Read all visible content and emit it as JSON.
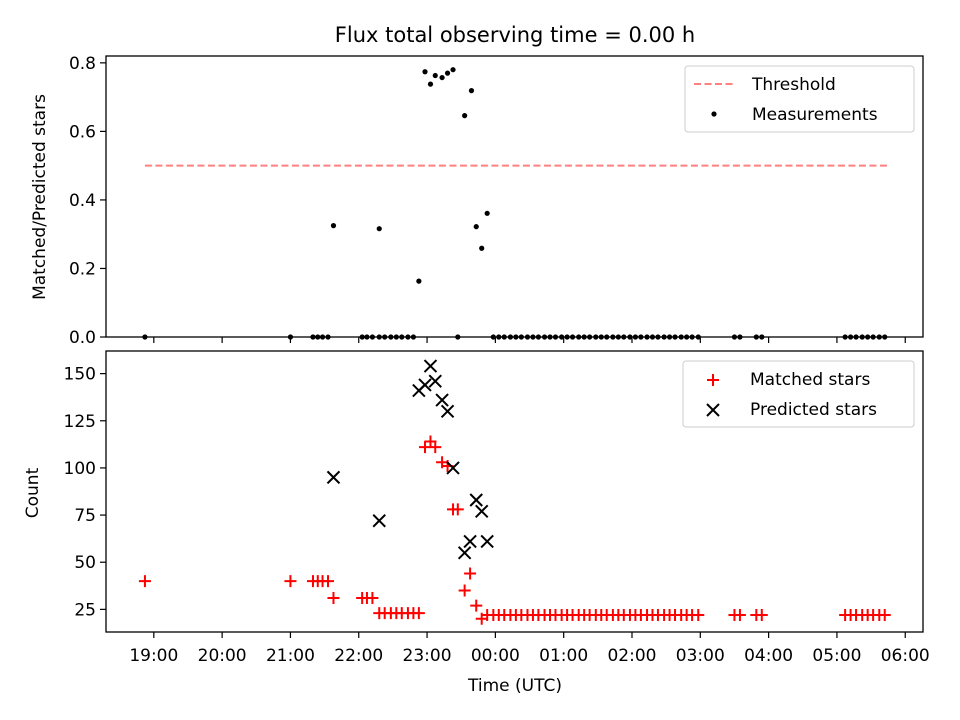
{
  "chart_data": [
    {
      "type": "scatter",
      "title": "Flux total observing time = 0.00 h",
      "ylabel": "Matched/Predicted stars",
      "ylim": [
        0,
        0.82
      ],
      "yticks": [
        0.0,
        0.2,
        0.4,
        0.6,
        0.8
      ],
      "ytick_labels": [
        "0.0",
        "0.2",
        "0.4",
        "0.6",
        "0.8"
      ],
      "legend_position": "top-right",
      "threshold": {
        "name": "Threshold",
        "value": 0.5,
        "x_start": 18.87,
        "x_end": 29.75,
        "color": "#ff8080"
      },
      "series": [
        {
          "name": "Measurements",
          "color": "#000000",
          "x": [
            18.87,
            21.0,
            21.33,
            21.4,
            21.47,
            21.55,
            21.63,
            22.05,
            22.12,
            22.2,
            22.3,
            22.3,
            22.38,
            22.47,
            22.55,
            22.63,
            22.72,
            22.8,
            22.88,
            22.97,
            23.05,
            23.12,
            23.22,
            23.3,
            23.38,
            23.45,
            23.55,
            23.65,
            23.72,
            23.8,
            23.88,
            23.97,
            24.05,
            24.13,
            24.22,
            24.3,
            24.38,
            24.47,
            24.55,
            24.63,
            24.72,
            24.8,
            24.88,
            24.97,
            25.05,
            25.13,
            25.22,
            25.3,
            25.38,
            25.47,
            25.55,
            25.63,
            25.72,
            25.8,
            25.88,
            25.97,
            26.05,
            26.13,
            26.22,
            26.3,
            26.38,
            26.47,
            26.55,
            26.63,
            26.72,
            26.8,
            26.88,
            26.97,
            27.5,
            27.58,
            27.82,
            27.9,
            29.12,
            29.2,
            29.28,
            29.37,
            29.45,
            29.53,
            29.62,
            29.7
          ],
          "y": [
            0.0,
            0.0,
            0.0,
            0.0,
            0.0,
            0.0,
            0.325,
            0.0,
            0.0,
            0.0,
            0.0,
            0.316,
            0.0,
            0.0,
            0.0,
            0.0,
            0.0,
            0.0,
            0.163,
            0.774,
            0.738,
            0.763,
            0.757,
            0.77,
            0.78,
            0.0,
            0.646,
            0.719,
            0.322,
            0.259,
            0.361,
            0.0,
            0.0,
            0.0,
            0.0,
            0.0,
            0.0,
            0.0,
            0.0,
            0.0,
            0.0,
            0.0,
            0.0,
            0.0,
            0.0,
            0.0,
            0.0,
            0.0,
            0.0,
            0.0,
            0.0,
            0.0,
            0.0,
            0.0,
            0.0,
            0.0,
            0.0,
            0.0,
            0.0,
            0.0,
            0.0,
            0.0,
            0.0,
            0.0,
            0.0,
            0.0,
            0.0,
            0.0,
            0.0,
            0.0,
            0.0,
            0.0,
            0.0,
            0.0,
            0.0,
            0.0,
            0.0,
            0.0,
            0.0,
            0.0
          ]
        }
      ]
    },
    {
      "type": "scatter",
      "xlabel": "Time (UTC)",
      "ylabel": "Count",
      "ylim": [
        13,
        162
      ],
      "yticks": [
        25,
        50,
        75,
        100,
        125,
        150
      ],
      "ytick_labels": [
        "25",
        "50",
        "75",
        "100",
        "125",
        "150"
      ],
      "xlim": [
        18.3,
        30.26
      ],
      "xticks": [
        19,
        20,
        21,
        22,
        23,
        24,
        25,
        26,
        27,
        28,
        29,
        30
      ],
      "xtick_labels": [
        "19:00",
        "20:00",
        "21:00",
        "22:00",
        "23:00",
        "00:00",
        "01:00",
        "02:00",
        "03:00",
        "04:00",
        "05:00",
        "06:00"
      ],
      "legend_position": "top-right",
      "series": [
        {
          "name": "Matched stars",
          "color": "#ff0000",
          "x": [
            18.87,
            21.0,
            21.33,
            21.4,
            21.47,
            21.55,
            21.63,
            22.05,
            22.12,
            22.2,
            22.3,
            22.38,
            22.47,
            22.55,
            22.63,
            22.72,
            22.8,
            22.88,
            22.97,
            23.05,
            23.12,
            23.22,
            23.3,
            23.38,
            23.45,
            23.55,
            23.63,
            23.72,
            23.8,
            23.88,
            23.97,
            24.05,
            24.13,
            24.22,
            24.3,
            24.38,
            24.47,
            24.55,
            24.63,
            24.72,
            24.8,
            24.88,
            24.97,
            25.05,
            25.13,
            25.22,
            25.3,
            25.38,
            25.47,
            25.55,
            25.63,
            25.72,
            25.8,
            25.88,
            25.97,
            26.05,
            26.13,
            26.22,
            26.3,
            26.38,
            26.47,
            26.55,
            26.63,
            26.72,
            26.8,
            26.88,
            26.97,
            27.5,
            27.58,
            27.82,
            27.9,
            29.12,
            29.2,
            29.28,
            29.37,
            29.45,
            29.53,
            29.62,
            29.7
          ],
          "y": [
            40,
            40,
            40,
            40,
            40,
            40,
            31,
            31,
            31,
            31,
            23,
            23,
            23,
            23,
            23,
            23,
            23,
            23,
            111,
            114,
            111,
            103,
            101,
            78,
            78,
            35,
            44,
            27,
            20,
            22,
            22,
            22,
            22,
            22,
            22,
            22,
            22,
            22,
            22,
            22,
            22,
            22,
            22,
            22,
            22,
            22,
            22,
            22,
            22,
            22,
            22,
            22,
            22,
            22,
            22,
            22,
            22,
            22,
            22,
            22,
            22,
            22,
            22,
            22,
            22,
            22,
            22,
            22,
            22,
            22,
            22,
            22,
            22,
            22,
            22,
            22,
            22,
            22,
            22
          ]
        },
        {
          "name": "Predicted stars",
          "color": "#000000",
          "x": [
            21.63,
            22.3,
            22.88,
            22.97,
            23.05,
            23.12,
            23.22,
            23.3,
            23.38,
            23.55,
            23.63,
            23.72,
            23.8,
            23.88
          ],
          "y": [
            95,
            72,
            141,
            144,
            154,
            146,
            136,
            130,
            100,
            55,
            61,
            83,
            77,
            61
          ]
        }
      ]
    }
  ]
}
